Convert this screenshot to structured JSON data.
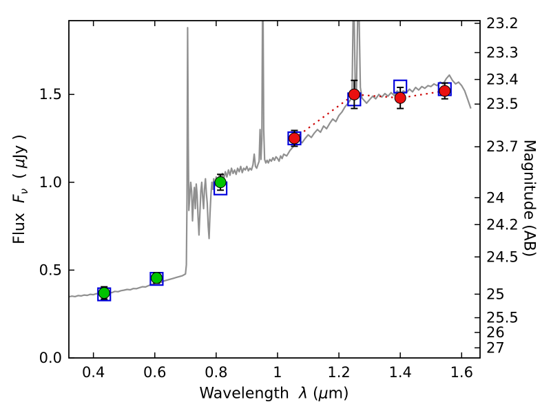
{
  "labels": {
    "xlabel": {
      "word": "Wavelength",
      "lambda": "λ",
      "open": "(",
      "mu": "μ",
      "close": "m)"
    },
    "ylabel_left": {
      "word": "Flux",
      "f": "F",
      "nu": "ν",
      "open": "( ",
      "mu": "μ",
      "close": "Jy )"
    },
    "ylabel_right": "Magnitude (AB)"
  },
  "chart_data": {
    "type": "line",
    "title": "",
    "xlabel": "Wavelength λ (μm)",
    "ylabel_left": "Flux Fν ( μJy )",
    "ylabel_right": "Magnitude (AB)",
    "xlim": [
      0.32,
      1.66
    ],
    "ylim": [
      0.0,
      1.92
    ],
    "grid": false,
    "legend": "none",
    "x_ticks": [
      {
        "value": 0.4,
        "label": "0.4"
      },
      {
        "value": 0.6,
        "label": "0.6"
      },
      {
        "value": 0.8,
        "label": "0.8"
      },
      {
        "value": 1.0,
        "label": "1"
      },
      {
        "value": 1.2,
        "label": "1.2"
      },
      {
        "value": 1.4,
        "label": "1.4"
      },
      {
        "value": 1.6,
        "label": "1.6"
      }
    ],
    "y_ticks_left": [
      {
        "value": 0.0,
        "label": "0.0"
      },
      {
        "value": 0.5,
        "label": "0.5"
      },
      {
        "value": 1.0,
        "label": "1.0"
      },
      {
        "value": 1.5,
        "label": "1.5"
      }
    ],
    "y_ticks_right": [
      {
        "label": "23.2",
        "flux": 1.905
      },
      {
        "label": "23.3",
        "flux": 1.738
      },
      {
        "label": "23.4",
        "flux": 1.585
      },
      {
        "label": "23.5",
        "flux": 1.445
      },
      {
        "label": "23.7",
        "flux": 1.202
      },
      {
        "label": "24",
        "flux": 0.912
      },
      {
        "label": "24.2",
        "flux": 0.759
      },
      {
        "label": "24.5",
        "flux": 0.575
      },
      {
        "label": "25",
        "flux": 0.363
      },
      {
        "label": "25.5",
        "flux": 0.229
      },
      {
        "label": "26",
        "flux": 0.145
      },
      {
        "label": "27",
        "flux": 0.0575
      }
    ],
    "colors": {
      "spectrum": "#909090",
      "observed_green": "#00c300",
      "observed_red": "#ea1010",
      "marker_edge": "#000000",
      "model_square": "#0000dd",
      "error_bar": "#000000",
      "dotted_line": "#cc0000",
      "axis": "#000000"
    },
    "observed_points": [
      {
        "wavelength": 0.435,
        "flux": 0.37,
        "error": 0.035,
        "color": "green"
      },
      {
        "wavelength": 0.606,
        "flux": 0.455,
        "error": 0.03,
        "color": "green"
      },
      {
        "wavelength": 0.814,
        "flux": 1.0,
        "error": 0.045,
        "color": "green"
      },
      {
        "wavelength": 1.055,
        "flux": 1.25,
        "error": 0.045,
        "color": "red"
      },
      {
        "wavelength": 1.25,
        "flux": 1.5,
        "error": 0.08,
        "color": "red"
      },
      {
        "wavelength": 1.4,
        "flux": 1.48,
        "error": 0.06,
        "color": "red"
      },
      {
        "wavelength": 1.545,
        "flux": 1.52,
        "error": 0.045,
        "color": "red"
      }
    ],
    "model_points": [
      [
        0.435,
        0.362
      ],
      [
        0.606,
        0.45
      ],
      [
        0.814,
        0.965
      ],
      [
        1.055,
        1.25
      ],
      [
        1.25,
        1.472
      ],
      [
        1.4,
        1.545
      ],
      [
        1.545,
        1.53
      ]
    ],
    "spectrum": [
      [
        0.32,
        0.348
      ],
      [
        0.33,
        0.352
      ],
      [
        0.34,
        0.349
      ],
      [
        0.35,
        0.355
      ],
      [
        0.36,
        0.353
      ],
      [
        0.37,
        0.358
      ],
      [
        0.38,
        0.356
      ],
      [
        0.39,
        0.362
      ],
      [
        0.4,
        0.36
      ],
      [
        0.41,
        0.366
      ],
      [
        0.42,
        0.364
      ],
      [
        0.43,
        0.37
      ],
      [
        0.44,
        0.368
      ],
      [
        0.45,
        0.374
      ],
      [
        0.46,
        0.372
      ],
      [
        0.47,
        0.379
      ],
      [
        0.48,
        0.377
      ],
      [
        0.49,
        0.383
      ],
      [
        0.5,
        0.386
      ],
      [
        0.51,
        0.39
      ],
      [
        0.52,
        0.388
      ],
      [
        0.53,
        0.395
      ],
      [
        0.54,
        0.394
      ],
      [
        0.55,
        0.4
      ],
      [
        0.56,
        0.405
      ],
      [
        0.57,
        0.404
      ],
      [
        0.58,
        0.412
      ],
      [
        0.59,
        0.418
      ],
      [
        0.6,
        0.425
      ],
      [
        0.61,
        0.432
      ],
      [
        0.62,
        0.43
      ],
      [
        0.63,
        0.438
      ],
      [
        0.64,
        0.443
      ],
      [
        0.65,
        0.448
      ],
      [
        0.66,
        0.453
      ],
      [
        0.67,
        0.458
      ],
      [
        0.68,
        0.463
      ],
      [
        0.69,
        0.468
      ],
      [
        0.7,
        0.478
      ],
      [
        0.703,
        0.53
      ],
      [
        0.705,
        0.9
      ],
      [
        0.707,
        1.88
      ],
      [
        0.709,
        1.25
      ],
      [
        0.711,
        0.84
      ],
      [
        0.714,
        0.92
      ],
      [
        0.717,
        1.0
      ],
      [
        0.72,
        0.95
      ],
      [
        0.723,
        0.78
      ],
      [
        0.726,
        0.9
      ],
      [
        0.729,
        0.97
      ],
      [
        0.732,
        0.85
      ],
      [
        0.735,
        0.99
      ],
      [
        0.738,
        0.93
      ],
      [
        0.741,
        0.8
      ],
      [
        0.744,
        0.7
      ],
      [
        0.747,
        0.82
      ],
      [
        0.75,
        0.95
      ],
      [
        0.753,
        1.0
      ],
      [
        0.756,
        0.92
      ],
      [
        0.759,
        0.85
      ],
      [
        0.762,
        0.96
      ],
      [
        0.765,
        1.02
      ],
      [
        0.768,
        0.94
      ],
      [
        0.771,
        0.88
      ],
      [
        0.774,
        0.75
      ],
      [
        0.777,
        0.68
      ],
      [
        0.78,
        0.82
      ],
      [
        0.783,
        0.93
      ],
      [
        0.786,
        1.0
      ],
      [
        0.789,
        0.96
      ],
      [
        0.792,
        1.02
      ],
      [
        0.796,
        0.98
      ],
      [
        0.8,
        1.03
      ],
      [
        0.805,
        0.99
      ],
      [
        0.81,
        1.04
      ],
      [
        0.815,
        1.0
      ],
      [
        0.82,
        1.05
      ],
      [
        0.825,
        1.02
      ],
      [
        0.83,
        1.06
      ],
      [
        0.835,
        1.03
      ],
      [
        0.84,
        1.07
      ],
      [
        0.845,
        1.04
      ],
      [
        0.85,
        1.08
      ],
      [
        0.855,
        1.05
      ],
      [
        0.86,
        1.07
      ],
      [
        0.865,
        1.045
      ],
      [
        0.87,
        1.08
      ],
      [
        0.875,
        1.06
      ],
      [
        0.88,
        1.09
      ],
      [
        0.885,
        1.055
      ],
      [
        0.89,
        1.08
      ],
      [
        0.895,
        1.07
      ],
      [
        0.9,
        1.09
      ],
      [
        0.905,
        1.065
      ],
      [
        0.91,
        1.08
      ],
      [
        0.915,
        1.07
      ],
      [
        0.92,
        1.1
      ],
      [
        0.924,
        1.16
      ],
      [
        0.928,
        1.09
      ],
      [
        0.932,
        1.08
      ],
      [
        0.936,
        1.1
      ],
      [
        0.94,
        1.12
      ],
      [
        0.943,
        1.3
      ],
      [
        0.946,
        1.13
      ],
      [
        0.949,
        1.25
      ],
      [
        0.951,
        1.92
      ],
      [
        0.953,
        1.92
      ],
      [
        0.955,
        1.3
      ],
      [
        0.958,
        1.13
      ],
      [
        0.962,
        1.11
      ],
      [
        0.966,
        1.125
      ],
      [
        0.97,
        1.11
      ],
      [
        0.975,
        1.13
      ],
      [
        0.98,
        1.12
      ],
      [
        0.985,
        1.14
      ],
      [
        0.99,
        1.125
      ],
      [
        0.995,
        1.145
      ],
      [
        1.0,
        1.135
      ],
      [
        1.005,
        1.12
      ],
      [
        1.01,
        1.15
      ],
      [
        1.015,
        1.135
      ],
      [
        1.02,
        1.16
      ],
      [
        1.03,
        1.15
      ],
      [
        1.04,
        1.18
      ],
      [
        1.05,
        1.2
      ],
      [
        1.06,
        1.22
      ],
      [
        1.07,
        1.24
      ],
      [
        1.08,
        1.225
      ],
      [
        1.09,
        1.25
      ],
      [
        1.1,
        1.27
      ],
      [
        1.11,
        1.255
      ],
      [
        1.12,
        1.28
      ],
      [
        1.13,
        1.3
      ],
      [
        1.14,
        1.285
      ],
      [
        1.15,
        1.32
      ],
      [
        1.16,
        1.305
      ],
      [
        1.17,
        1.335
      ],
      [
        1.18,
        1.36
      ],
      [
        1.19,
        1.345
      ],
      [
        1.2,
        1.38
      ],
      [
        1.21,
        1.4
      ],
      [
        1.22,
        1.43
      ],
      [
        1.23,
        1.45
      ],
      [
        1.238,
        1.47
      ],
      [
        1.243,
        1.52
      ],
      [
        1.246,
        1.92
      ],
      [
        1.25,
        1.92
      ],
      [
        1.253,
        1.56
      ],
      [
        1.257,
        1.5
      ],
      [
        1.261,
        1.92
      ],
      [
        1.266,
        1.92
      ],
      [
        1.27,
        1.54
      ],
      [
        1.275,
        1.48
      ],
      [
        1.28,
        1.47
      ],
      [
        1.29,
        1.45
      ],
      [
        1.3,
        1.47
      ],
      [
        1.31,
        1.49
      ],
      [
        1.32,
        1.475
      ],
      [
        1.33,
        1.5
      ],
      [
        1.34,
        1.485
      ],
      [
        1.35,
        1.505
      ],
      [
        1.36,
        1.49
      ],
      [
        1.37,
        1.51
      ],
      [
        1.38,
        1.495
      ],
      [
        1.39,
        1.52
      ],
      [
        1.4,
        1.505
      ],
      [
        1.41,
        1.52
      ],
      [
        1.42,
        1.51
      ],
      [
        1.43,
        1.53
      ],
      [
        1.44,
        1.515
      ],
      [
        1.45,
        1.54
      ],
      [
        1.46,
        1.525
      ],
      [
        1.47,
        1.545
      ],
      [
        1.48,
        1.535
      ],
      [
        1.49,
        1.55
      ],
      [
        1.5,
        1.545
      ],
      [
        1.51,
        1.56
      ],
      [
        1.52,
        1.55
      ],
      [
        1.53,
        1.57
      ],
      [
        1.54,
        1.56
      ],
      [
        1.55,
        1.59
      ],
      [
        1.56,
        1.61
      ],
      [
        1.57,
        1.58
      ],
      [
        1.58,
        1.56
      ],
      [
        1.59,
        1.57
      ],
      [
        1.6,
        1.55
      ],
      [
        1.61,
        1.52
      ],
      [
        1.62,
        1.47
      ],
      [
        1.63,
        1.42
      ]
    ]
  }
}
